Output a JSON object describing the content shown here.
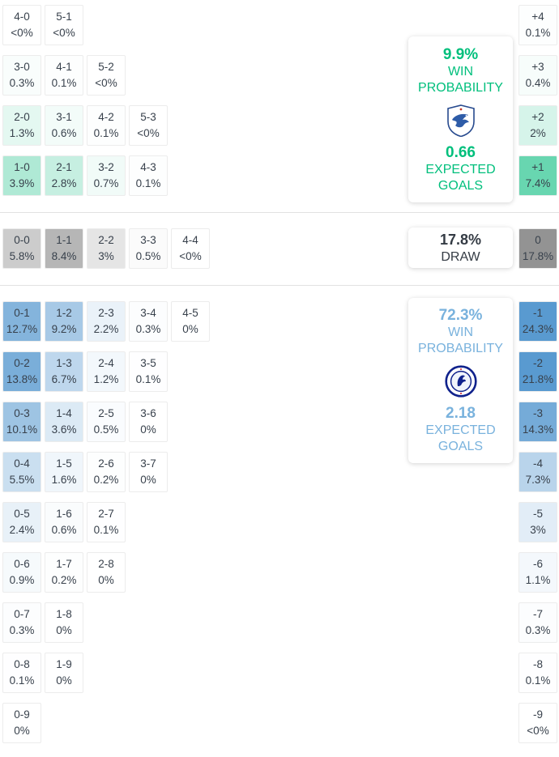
{
  "chart_data": {
    "type": "heatmap",
    "description": "Correct-score and goal-difference probability matrix with win/draw probabilities and expected goals",
    "value_unit": "%",
    "sections": [
      {
        "id": "home",
        "outcome": "Home win",
        "team": "Cardiff City",
        "accent": "#00bf7c",
        "win_probability": "9.9%",
        "win_probability_label": "WIN PROBABILITY",
        "expected_goals": "0.66",
        "expected_goals_label": "EXPECTED GOALS",
        "rows": [
          [
            {
              "score": "4-0",
              "pct": "<0%",
              "value": 0
            },
            {
              "score": "5-1",
              "pct": "<0%",
              "value": 0
            }
          ],
          [
            {
              "score": "3-0",
              "pct": "0.3%",
              "value": 0.3
            },
            {
              "score": "4-1",
              "pct": "0.1%",
              "value": 0.1
            },
            {
              "score": "5-2",
              "pct": "<0%",
              "value": 0
            }
          ],
          [
            {
              "score": "2-0",
              "pct": "1.3%",
              "value": 1.3
            },
            {
              "score": "3-1",
              "pct": "0.6%",
              "value": 0.6
            },
            {
              "score": "4-2",
              "pct": "0.1%",
              "value": 0.1
            },
            {
              "score": "5-3",
              "pct": "<0%",
              "value": 0
            }
          ],
          [
            {
              "score": "1-0",
              "pct": "3.9%",
              "value": 3.9
            },
            {
              "score": "2-1",
              "pct": "2.8%",
              "value": 2.8
            },
            {
              "score": "3-2",
              "pct": "0.7%",
              "value": 0.7
            },
            {
              "score": "4-3",
              "pct": "0.1%",
              "value": 0.1
            }
          ]
        ],
        "margins": [
          {
            "diff": "+4",
            "pct": "0.1%",
            "value": 0.1
          },
          {
            "diff": "+3",
            "pct": "0.4%",
            "value": 0.4
          },
          {
            "diff": "+2",
            "pct": "2%",
            "value": 2
          },
          {
            "diff": "+1",
            "pct": "7.4%",
            "value": 7.4
          }
        ]
      },
      {
        "id": "draw",
        "outcome": "Draw",
        "accent": "#343b44",
        "probability": "17.8%",
        "outcome_label": "DRAW",
        "rows": [
          [
            {
              "score": "0-0",
              "pct": "5.8%",
              "value": 5.8
            },
            {
              "score": "1-1",
              "pct": "8.4%",
              "value": 8.4
            },
            {
              "score": "2-2",
              "pct": "3%",
              "value": 3
            },
            {
              "score": "3-3",
              "pct": "0.5%",
              "value": 0.5
            },
            {
              "score": "4-4",
              "pct": "<0%",
              "value": 0
            }
          ]
        ],
        "margins": [
          {
            "diff": "0",
            "pct": "17.8%",
            "value": 17.8
          }
        ]
      },
      {
        "id": "away",
        "outcome": "Away win",
        "team": "Chelsea",
        "accent": "#79b2dd",
        "win_probability": "72.3%",
        "win_probability_label": "WIN PROBABILITY",
        "expected_goals": "2.18",
        "expected_goals_label": "EXPECTED GOALS",
        "rows": [
          [
            {
              "score": "0-1",
              "pct": "12.7%",
              "value": 12.7
            },
            {
              "score": "1-2",
              "pct": "9.2%",
              "value": 9.2
            },
            {
              "score": "2-3",
              "pct": "2.2%",
              "value": 2.2
            },
            {
              "score": "3-4",
              "pct": "0.3%",
              "value": 0.3
            },
            {
              "score": "4-5",
              "pct": "0%",
              "value": 0
            }
          ],
          [
            {
              "score": "0-2",
              "pct": "13.8%",
              "value": 13.8
            },
            {
              "score": "1-3",
              "pct": "6.7%",
              "value": 6.7
            },
            {
              "score": "2-4",
              "pct": "1.2%",
              "value": 1.2
            },
            {
              "score": "3-5",
              "pct": "0.1%",
              "value": 0.1
            }
          ],
          [
            {
              "score": "0-3",
              "pct": "10.1%",
              "value": 10.1
            },
            {
              "score": "1-4",
              "pct": "3.6%",
              "value": 3.6
            },
            {
              "score": "2-5",
              "pct": "0.5%",
              "value": 0.5
            },
            {
              "score": "3-6",
              "pct": "0%",
              "value": 0
            }
          ],
          [
            {
              "score": "0-4",
              "pct": "5.5%",
              "value": 5.5
            },
            {
              "score": "1-5",
              "pct": "1.6%",
              "value": 1.6
            },
            {
              "score": "2-6",
              "pct": "0.2%",
              "value": 0.2
            },
            {
              "score": "3-7",
              "pct": "0%",
              "value": 0
            }
          ],
          [
            {
              "score": "0-5",
              "pct": "2.4%",
              "value": 2.4
            },
            {
              "score": "1-6",
              "pct": "0.6%",
              "value": 0.6
            },
            {
              "score": "2-7",
              "pct": "0.1%",
              "value": 0.1
            }
          ],
          [
            {
              "score": "0-6",
              "pct": "0.9%",
              "value": 0.9
            },
            {
              "score": "1-7",
              "pct": "0.2%",
              "value": 0.2
            },
            {
              "score": "2-8",
              "pct": "0%",
              "value": 0
            }
          ],
          [
            {
              "score": "0-7",
              "pct": "0.3%",
              "value": 0.3
            },
            {
              "score": "1-8",
              "pct": "0%",
              "value": 0
            }
          ],
          [
            {
              "score": "0-8",
              "pct": "0.1%",
              "value": 0.1
            },
            {
              "score": "1-9",
              "pct": "0%",
              "value": 0
            }
          ],
          [
            {
              "score": "0-9",
              "pct": "0%",
              "value": 0
            }
          ]
        ],
        "margins": [
          {
            "diff": "-1",
            "pct": "24.3%",
            "value": 24.3
          },
          {
            "diff": "-2",
            "pct": "21.8%",
            "value": 21.8
          },
          {
            "diff": "-3",
            "pct": "14.3%",
            "value": 14.3
          },
          {
            "diff": "-4",
            "pct": "7.3%",
            "value": 7.3
          },
          {
            "diff": "-5",
            "pct": "3%",
            "value": 3
          },
          {
            "diff": "-6",
            "pct": "1.1%",
            "value": 1.1
          },
          {
            "diff": "-7",
            "pct": "0.3%",
            "value": 0.3
          },
          {
            "diff": "-8",
            "pct": "0.1%",
            "value": 0.1
          },
          {
            "diff": "-9",
            "pct": "<0%",
            "value": 0
          }
        ]
      }
    ]
  }
}
